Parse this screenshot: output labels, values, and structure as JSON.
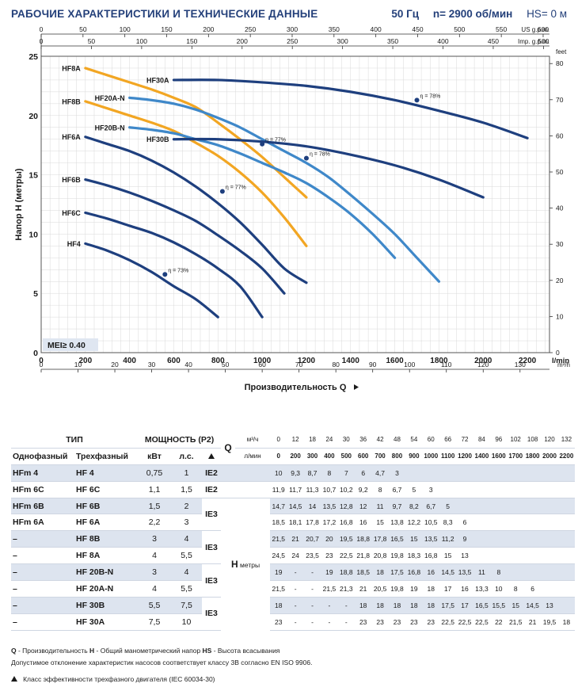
{
  "header": {
    "title": "РАБОЧИЕ ХАРАКТЕРИСТИКИ И ТЕХНИЧЕСКИЕ ДАННЫЕ",
    "freq": "50 Гц",
    "speed": "n= 2900 об/мин",
    "hs": "HS= 0 м"
  },
  "chart_data": {
    "type": "line",
    "ylabel": "Напор H (метры)",
    "xlabel": "Производительность Q",
    "mei_label": "MEI≥ 0.40",
    "axes": {
      "lmin": {
        "range": [
          0,
          2300
        ],
        "ticks": [
          0,
          200,
          400,
          600,
          800,
          1000,
          1200,
          1400,
          1600,
          1800,
          2000,
          2200
        ],
        "unit": "l/min"
      },
      "m3h": {
        "range": [
          0,
          138
        ],
        "ticks": [
          0,
          10,
          20,
          30,
          40,
          50,
          60,
          70,
          80,
          90,
          100,
          110,
          120,
          130
        ],
        "unit": "m³/h"
      },
      "usgpm": {
        "range": [
          0,
          607.6
        ],
        "ticks": [
          0,
          50,
          100,
          150,
          200,
          250,
          300,
          350,
          400,
          450,
          500,
          550,
          600
        ],
        "unit": "US g.p.m."
      },
      "impgpm": {
        "range": [
          0,
          506
        ],
        "ticks": [
          0,
          50,
          100,
          150,
          200,
          250,
          300,
          350,
          400,
          450,
          500
        ],
        "unit": "Imp. g.p.m."
      },
      "metres": {
        "range": [
          0,
          25
        ],
        "ticks": [
          0,
          5,
          10,
          15,
          20,
          25
        ]
      },
      "feet": {
        "range": [
          0,
          82.02
        ],
        "ticks": [
          0,
          10,
          20,
          30,
          40,
          50,
          60,
          70,
          80
        ],
        "unit": "feet"
      }
    },
    "series": [
      {
        "name": "HF8A",
        "color": "#f2a623",
        "x": [
          200,
          300,
          400,
          500,
          600,
          700,
          800,
          900,
          1000,
          1100,
          1200
        ],
        "y": [
          24.0,
          23.4,
          22.8,
          22.2,
          21.5,
          20.7,
          19.4,
          18.0,
          16.5,
          14.8,
          13.1
        ]
      },
      {
        "name": "HF8B",
        "color": "#f2a623",
        "x": [
          200,
          300,
          400,
          500,
          600,
          700,
          800,
          900,
          1000,
          1100,
          1200
        ],
        "y": [
          21.2,
          20.6,
          20.0,
          19.4,
          18.7,
          17.7,
          16.6,
          15.2,
          13.5,
          11.4,
          9.0
        ]
      },
      {
        "name": "HF20A-N",
        "color": "#3f88c9",
        "x": [
          400,
          500,
          600,
          700,
          800,
          900,
          1000,
          1100,
          1200,
          1300,
          1400,
          1500,
          1600,
          1700,
          1800
        ],
        "y": [
          21.5,
          21.3,
          21.0,
          20.5,
          19.8,
          19.0,
          18.0,
          17.0,
          16.0,
          14.8,
          13.3,
          11.7,
          10.0,
          8.0,
          6.0
        ]
      },
      {
        "name": "HF20B-N",
        "color": "#3f88c9",
        "x": [
          400,
          500,
          600,
          700,
          800,
          900,
          1000,
          1100,
          1200,
          1300,
          1400,
          1500,
          1600
        ],
        "y": [
          19.0,
          18.8,
          18.5,
          18.0,
          17.5,
          16.8,
          16.0,
          15.2,
          14.3,
          13.1,
          11.7,
          10.0,
          8.0
        ]
      },
      {
        "name": "HF30A",
        "color": "#1e3f7e",
        "x": [
          600,
          800,
          1000,
          1200,
          1400,
          1600,
          1800,
          2000,
          2200
        ],
        "y": [
          23.0,
          23.0,
          22.8,
          22.5,
          22.0,
          21.3,
          20.4,
          19.4,
          18.1
        ]
      },
      {
        "name": "HF30B",
        "color": "#1e3f7e",
        "x": [
          600,
          800,
          1000,
          1200,
          1400,
          1600,
          1800,
          2000
        ],
        "y": [
          18.0,
          18.0,
          17.8,
          17.4,
          16.7,
          15.8,
          14.6,
          13.1
        ]
      },
      {
        "name": "HF6A",
        "color": "#1e3f7e",
        "x": [
          200,
          300,
          400,
          500,
          600,
          700,
          800,
          900,
          1000,
          1100,
          1200
        ],
        "y": [
          18.2,
          17.6,
          17.0,
          16.2,
          15.2,
          14.0,
          12.6,
          11.0,
          9.1,
          7.1,
          5.9
        ]
      },
      {
        "name": "HF6B",
        "color": "#1e3f7e",
        "x": [
          200,
          300,
          400,
          500,
          600,
          700,
          800,
          900,
          1000,
          1100
        ],
        "y": [
          14.6,
          14.1,
          13.5,
          12.8,
          12.0,
          11.1,
          9.9,
          8.6,
          7.1,
          5.0
        ]
      },
      {
        "name": "HF6C",
        "color": "#1e3f7e",
        "x": [
          200,
          300,
          400,
          500,
          600,
          700,
          800,
          900,
          1000
        ],
        "y": [
          11.8,
          11.3,
          10.7,
          10.1,
          9.3,
          8.3,
          7.1,
          5.6,
          3.0
        ]
      },
      {
        "name": "HF4",
        "color": "#1e3f7e",
        "x": [
          200,
          300,
          400,
          500,
          600,
          700,
          800
        ],
        "y": [
          9.2,
          8.6,
          7.8,
          6.8,
          5.6,
          4.5,
          3.0
        ]
      }
    ],
    "efficiency_points": [
      {
        "label": "η = 78%",
        "x": 1700,
        "y": 21.3
      },
      {
        "label": "η = 77%",
        "x": 1000,
        "y": 17.6
      },
      {
        "label": "η = 78%",
        "x": 1200,
        "y": 16.4
      },
      {
        "label": "η = 77%",
        "x": 820,
        "y": 13.6
      },
      {
        "label": "η = 73%",
        "x": 560,
        "y": 6.6
      }
    ]
  },
  "table": {
    "h_tip": "ТИП",
    "h_power": "МОЩНОСТЬ (P2)",
    "h_single": "Однофазный",
    "h_three": "Трехфазный",
    "h_kw": "кВт",
    "h_hp": "л.с.",
    "q_letter": "Q",
    "q_unit1": "м³/ч",
    "q_unit2": "л/мин",
    "h_letter": "H",
    "h_unit": "метры",
    "q_m3h": [
      "0",
      "12",
      "18",
      "24",
      "30",
      "36",
      "42",
      "48",
      "54",
      "60",
      "66",
      "72",
      "84",
      "96",
      "102",
      "108",
      "120",
      "132"
    ],
    "q_lmin": [
      "0",
      "200",
      "300",
      "400",
      "500",
      "600",
      "700",
      "800",
      "900",
      "1000",
      "1100",
      "1200",
      "1400",
      "1600",
      "1700",
      "1800",
      "2000",
      "2200"
    ],
    "rows": [
      {
        "single": "HFm 4",
        "three": "HF 4",
        "kw": "0,75",
        "hp": "1",
        "ie": "IE2",
        "h": [
          "10",
          "9,3",
          "8,7",
          "8",
          "7",
          "6",
          "4,7",
          "3",
          "",
          "",
          "",
          "",
          "",
          "",
          "",
          "",
          "",
          ""
        ]
      },
      {
        "single": "HFm 6C",
        "three": "HF 6C",
        "kw": "1,1",
        "hp": "1,5",
        "ie": "IE2",
        "h": [
          "11,9",
          "11,7",
          "11,3",
          "10,7",
          "10,2",
          "9,2",
          "8",
          "6,7",
          "5",
          "3",
          "",
          "",
          "",
          "",
          "",
          "",
          "",
          ""
        ]
      },
      {
        "single": "HFm 6B",
        "three": "HF 6B",
        "kw": "1,5",
        "hp": "2",
        "ie": "IE3",
        "h": [
          "14,7",
          "14,5",
          "14",
          "13,5",
          "12,8",
          "12",
          "11",
          "9,7",
          "8,2",
          "6,7",
          "5",
          "",
          "",
          "",
          "",
          "",
          "",
          ""
        ]
      },
      {
        "single": "HFm 6A",
        "three": "HF 6A",
        "kw": "2,2",
        "hp": "3",
        "ie": "",
        "h": [
          "18,5",
          "18,1",
          "17,8",
          "17,2",
          "16,8",
          "16",
          "15",
          "13,8",
          "12,2",
          "10,5",
          "8,3",
          "6",
          "",
          "",
          "",
          "",
          "",
          ""
        ]
      },
      {
        "single": "–",
        "three": "HF 8B",
        "kw": "3",
        "hp": "4",
        "ie": "IE3",
        "h": [
          "21,5",
          "21",
          "20,7",
          "20",
          "19,5",
          "18,8",
          "17,8",
          "16,5",
          "15",
          "13,5",
          "11,2",
          "9",
          "",
          "",
          "",
          "",
          "",
          ""
        ]
      },
      {
        "single": "–",
        "three": "HF 8A",
        "kw": "4",
        "hp": "5,5",
        "ie": "",
        "h": [
          "24,5",
          "24",
          "23,5",
          "23",
          "22,5",
          "21,8",
          "20,8",
          "19,8",
          "18,3",
          "16,8",
          "15",
          "13",
          "",
          "",
          "",
          "",
          "",
          ""
        ]
      },
      {
        "single": "–",
        "three": "HF 20B-N",
        "kw": "3",
        "hp": "4",
        "ie": "IE3",
        "h": [
          "19",
          "-",
          "-",
          "19",
          "18,8",
          "18,5",
          "18",
          "17,5",
          "16,8",
          "16",
          "14,5",
          "13,5",
          "11",
          "8",
          "",
          "",
          "",
          ""
        ]
      },
      {
        "single": "–",
        "three": "HF 20A-N",
        "kw": "4",
        "hp": "5,5",
        "ie": "",
        "h": [
          "21,5",
          "-",
          "-",
          "21,5",
          "21,3",
          "21",
          "20,5",
          "19,8",
          "19",
          "18",
          "17",
          "16",
          "13,3",
          "10",
          "8",
          "6",
          "",
          ""
        ]
      },
      {
        "single": "–",
        "three": "HF 30B",
        "kw": "5,5",
        "hp": "7,5",
        "ie": "IE3",
        "h": [
          "18",
          "-",
          "-",
          "-",
          "-",
          "18",
          "18",
          "18",
          "18",
          "18",
          "17,5",
          "17",
          "16,5",
          "15,5",
          "15",
          "14,5",
          "13",
          ""
        ]
      },
      {
        "single": "–",
        "three": "HF 30A",
        "kw": "7,5",
        "hp": "10",
        "ie": "",
        "h": [
          "23",
          "-",
          "-",
          "-",
          "-",
          "23",
          "23",
          "23",
          "23",
          "23",
          "22,5",
          "22,5",
          "22,5",
          "22",
          "21,5",
          "21",
          "19,5",
          "18"
        ]
      }
    ]
  },
  "notes": {
    "q_key": "Q",
    "q_text": " - Производительность   ",
    "h_key": "H",
    "h_text": " - Общий манометрический напор   ",
    "hs_key": "HS",
    "hs_text": " - Высота всасывания",
    "tolerance": "Допустимое отклонение характеристик насосов соответствует классу 3B согласно EN ISO 9906.",
    "ie_note": "Класс эффективности трехфазного двигателя (IEC 60034-30)"
  }
}
